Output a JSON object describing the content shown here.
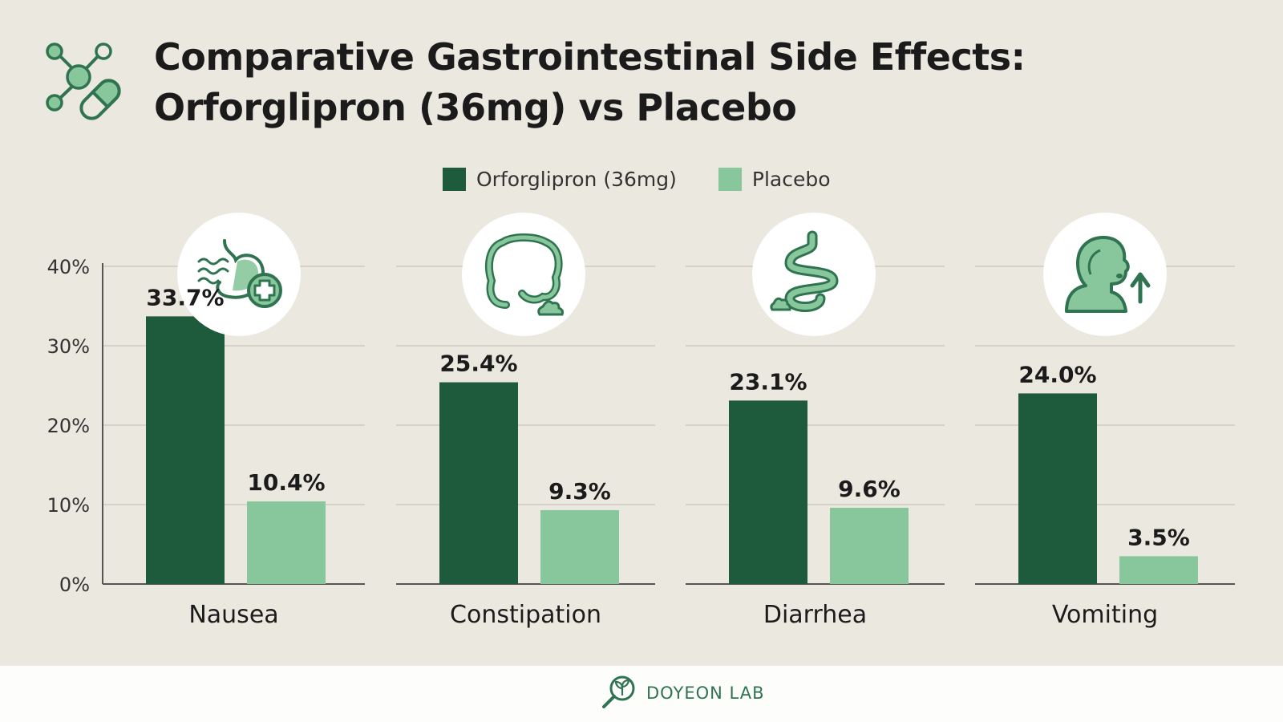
{
  "header": {
    "title_line1": "Comparative Gastrointestinal Side Effects:",
    "title_line2": "Orforglipron (36mg) vs Placebo",
    "icon": "molecule-pill-icon"
  },
  "legend": {
    "items": [
      {
        "label": "Orforglipron (36mg)",
        "color": "#1e5a3c"
      },
      {
        "label": "Placebo",
        "color": "#88c79b"
      }
    ]
  },
  "chart_data": {
    "type": "bar",
    "title": "Comparative Gastrointestinal Side Effects: Orforglipron (36mg) vs Placebo",
    "categories": [
      "Nausea",
      "Constipation",
      "Diarrhea",
      "Vomiting"
    ],
    "series": [
      {
        "name": "Orforglipron (36mg)",
        "values": [
          33.7,
          25.4,
          23.1,
          24.0
        ],
        "color": "#1e5a3c"
      },
      {
        "name": "Placebo",
        "values": [
          10.4,
          9.3,
          9.6,
          3.5
        ],
        "color": "#88c79b"
      }
    ],
    "value_labels": [
      [
        "33.7%",
        "10.4%"
      ],
      [
        "25.4%",
        "9.3%"
      ],
      [
        "23.1%",
        "9.6%"
      ],
      [
        "24.0%",
        "3.5%"
      ]
    ],
    "category_icons": [
      "stomach-nausea-icon",
      "colon-constipation-icon",
      "intestine-diarrhea-icon",
      "person-vomiting-icon"
    ],
    "yticks": [
      "0%",
      "10%",
      "20%",
      "30%",
      "40%"
    ],
    "ylim": [
      0,
      40
    ],
    "grid": true,
    "legend_position": "top-center"
  },
  "footer": {
    "brand": "DOYEON LAB",
    "icon": "magnifier-sprout-icon"
  }
}
